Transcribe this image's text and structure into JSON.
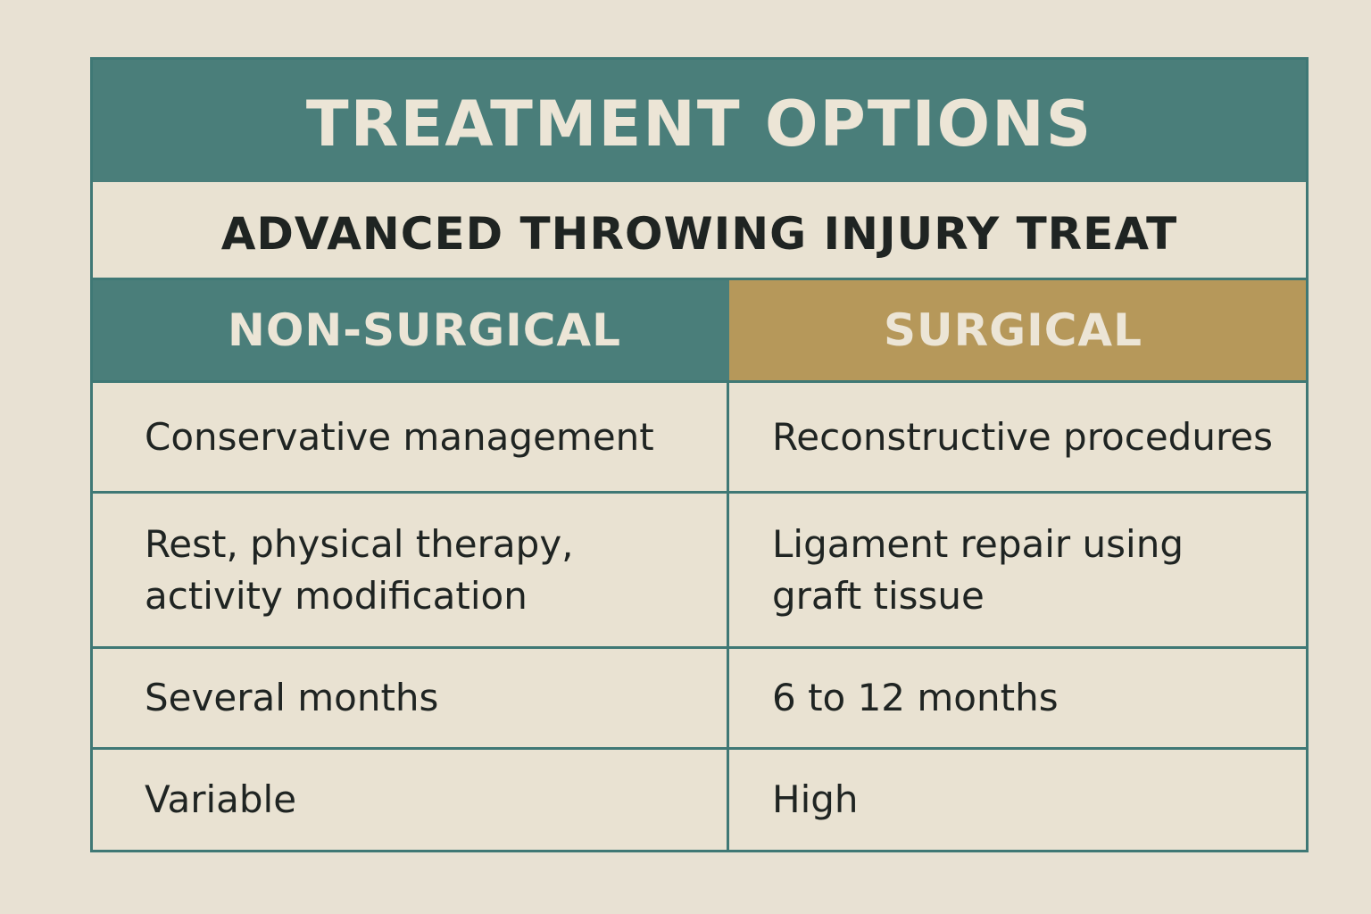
{
  "title": "TREATMENT OPTIONS",
  "subtitle": "ADVANCED THROWING INJURY TREAT",
  "columns": {
    "left": "NON-SURGICAL",
    "right": "SURGICAL"
  },
  "rows": [
    {
      "left": "Conservative management",
      "right": "Reconstructive procedures"
    },
    {
      "left": "Rest, physical therapy, activity modification",
      "right": "Ligament repair using graft tissue"
    },
    {
      "left": "Several months",
      "right": "6 to 12 months"
    },
    {
      "left": "Variable",
      "right": "High"
    }
  ],
  "colors": {
    "background": "#e8e1d3",
    "teal": "#4a7e7a",
    "gold": "#b6985a",
    "text": "#1f2422"
  }
}
